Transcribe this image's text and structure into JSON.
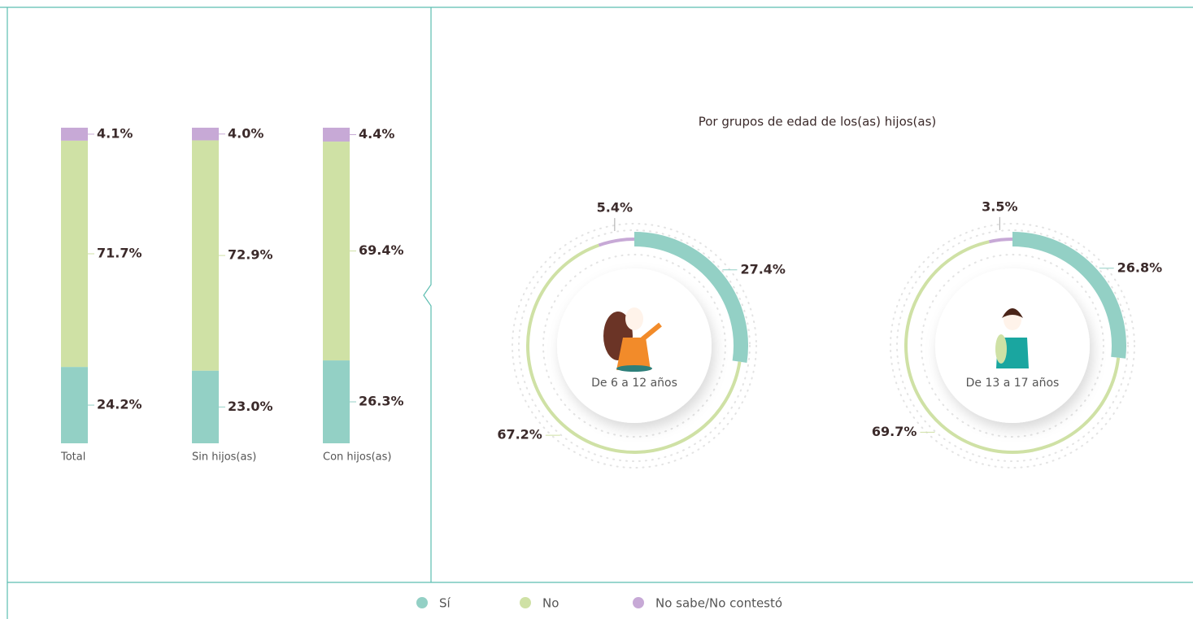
{
  "panel_title": "Por grupos de edad de los(as) hijos(as)",
  "chart_data": [
    {
      "type": "stacked-bar",
      "categories": [
        "Total",
        "Sin hijos(as)",
        "Con hijos(as)"
      ],
      "series": [
        {
          "name": "Sí",
          "color": "#93d0c5",
          "values": [
            24.2,
            23.0,
            26.3
          ],
          "value_labels": [
            "24.2%",
            "23.0%",
            "26.3%"
          ]
        },
        {
          "name": "No",
          "color": "#cfe1a5",
          "values": [
            71.7,
            72.9,
            69.4
          ],
          "value_labels": [
            "71.7%",
            "72.9%",
            "69.4%"
          ]
        },
        {
          "name": "No sabe/No contestó",
          "color": "#c7a9d6",
          "values": [
            4.1,
            4.0,
            4.4
          ],
          "value_labels": [
            "4.1%",
            "4.0%",
            "4.4%"
          ]
        }
      ]
    },
    {
      "type": "donut",
      "label": "De 6 a 12 años",
      "values": [
        27.4,
        67.2,
        5.4
      ],
      "value_labels": [
        "27.4%",
        "67.2%",
        "5.4%"
      ],
      "colors": [
        "#93d0c5",
        "#cfe1a5",
        "#c7a9d6"
      ]
    },
    {
      "type": "donut",
      "label": "De 13 a 17 años",
      "values": [
        26.8,
        69.7,
        3.5
      ],
      "value_labels": [
        "26.8%",
        "69.7%",
        "3.5%"
      ],
      "colors": [
        "#93d0c5",
        "#cfe1a5",
        "#c7a9d6"
      ]
    }
  ]
}
